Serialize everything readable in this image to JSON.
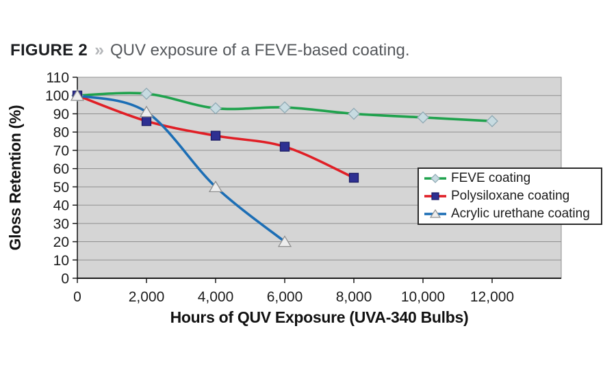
{
  "header": {
    "label": "FIGURE 2",
    "separator": "»",
    "caption": "QUV exposure of a FEVE-based coating."
  },
  "chart_data": {
    "type": "line",
    "xlabel": "Hours of QUV Exposure (UVA-340 Bulbs)",
    "ylabel": "Gloss Retention (%)",
    "xlim": [
      0,
      14000
    ],
    "ylim": [
      0,
      110
    ],
    "x_ticks": [
      0,
      2000,
      4000,
      6000,
      8000,
      10000,
      12000
    ],
    "x_tick_labels": [
      "0",
      "2,000",
      "4,000",
      "6,000",
      "8,000",
      "10,000",
      "12,000"
    ],
    "y_ticks": [
      0,
      10,
      20,
      30,
      40,
      50,
      60,
      70,
      80,
      90,
      100,
      110
    ],
    "y_tick_labels": [
      "0",
      "10",
      "20",
      "30",
      "40",
      "50",
      "60",
      "70",
      "80",
      "90",
      "100",
      "110"
    ],
    "grid": "horizontal",
    "plot_bg": "#d5d5d5",
    "grid_color": "#8f8f8f",
    "axis_color": "#1a1a1a",
    "legend_position": "right-middle",
    "series": [
      {
        "name": "FEVE coating",
        "color": "#1fa24d",
        "marker": "diamond",
        "marker_fill": "#c7dbe1",
        "marker_stroke": "#8fa9b4",
        "x": [
          0,
          2000,
          4000,
          6000,
          8000,
          10000,
          12000
        ],
        "y": [
          100,
          101,
          93,
          93.5,
          90,
          88,
          86
        ]
      },
      {
        "name": "Polysiloxane coating",
        "color": "#e01f26",
        "marker": "square",
        "marker_fill": "#2e3092",
        "marker_stroke": "#1b1c64",
        "x": [
          0,
          2000,
          4000,
          6000,
          8000
        ],
        "y": [
          100,
          86,
          78,
          72,
          55
        ]
      },
      {
        "name": "Acrylic urethane coating",
        "color": "#1c6eb5",
        "marker": "triangle",
        "marker_fill": "#ededed",
        "marker_stroke": "#8f8f8f",
        "x": [
          0,
          2000,
          4000,
          6000
        ],
        "y": [
          100,
          91,
          50,
          20
        ]
      }
    ]
  }
}
